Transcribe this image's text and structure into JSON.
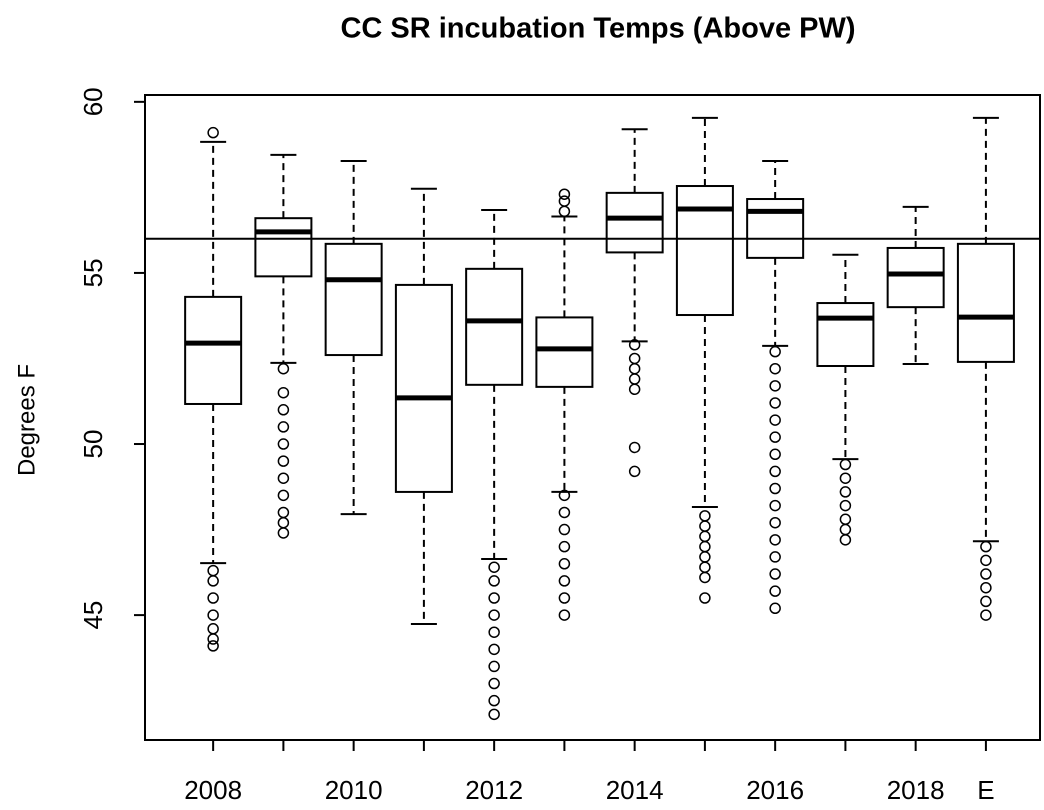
{
  "chart_data": {
    "type": "boxplot",
    "title": "CC SR incubation Temps (Above PW)",
    "y_label": "Degrees F",
    "categories": [
      "2008",
      null,
      "2010",
      null,
      "2012",
      null,
      "2014",
      null,
      "2016",
      null,
      "2018",
      "E"
    ],
    "boxes": [
      {
        "low": 46.52,
        "q1": 51.17,
        "median": 52.95,
        "q3": 54.3,
        "high": 58.83,
        "outliers": [
          59.1,
          46.3,
          46.0,
          45.5,
          45.0,
          44.6,
          44.3,
          44.1
        ]
      },
      {
        "low": 52.37,
        "q1": 54.9,
        "median": 56.2,
        "q3": 56.6,
        "high": 58.45,
        "outliers": [
          52.2,
          51.5,
          51.0,
          50.5,
          50.0,
          49.5,
          49.0,
          48.5,
          48.0,
          47.7,
          47.4
        ]
      },
      {
        "low": 47.95,
        "q1": 52.6,
        "median": 54.8,
        "q3": 55.85,
        "high": 58.27,
        "outliers": []
      },
      {
        "low": 44.74,
        "q1": 48.6,
        "median": 51.35,
        "q3": 54.65,
        "high": 57.46,
        "outliers": []
      },
      {
        "low": 46.64,
        "q1": 51.73,
        "median": 53.6,
        "q3": 55.12,
        "high": 56.84,
        "outliers": [
          46.4,
          46.0,
          45.5,
          45.0,
          44.5,
          44.0,
          43.5,
          43.0,
          42.5,
          42.1
        ]
      },
      {
        "low": 48.6,
        "q1": 51.67,
        "median": 52.78,
        "q3": 53.7,
        "high": 56.65,
        "outliers": [
          57.3,
          57.1,
          56.8,
          48.5,
          48.0,
          47.5,
          47.0,
          46.5,
          46.0,
          45.5,
          45.0
        ]
      },
      {
        "low": 53.0,
        "q1": 55.6,
        "median": 56.6,
        "q3": 57.34,
        "high": 59.2,
        "outliers": [
          52.9,
          52.5,
          52.2,
          51.9,
          51.6,
          49.9,
          49.2
        ]
      },
      {
        "low": 48.16,
        "q1": 53.77,
        "median": 56.87,
        "q3": 57.54,
        "high": 59.53,
        "outliers": [
          47.9,
          47.6,
          47.3,
          47.0,
          46.7,
          46.4,
          46.1,
          45.5
        ]
      },
      {
        "low": 52.87,
        "q1": 55.44,
        "median": 56.8,
        "q3": 57.16,
        "high": 58.27,
        "outliers": [
          52.7,
          52.2,
          51.7,
          51.2,
          50.7,
          50.2,
          49.7,
          49.2,
          48.7,
          48.2,
          47.7,
          47.2,
          46.7,
          46.2,
          45.7,
          45.2
        ]
      },
      {
        "low": 49.56,
        "q1": 52.28,
        "median": 53.68,
        "q3": 54.12,
        "high": 55.53,
        "outliers": [
          49.4,
          49.0,
          48.6,
          48.2,
          47.8,
          47.5,
          47.2
        ]
      },
      {
        "low": 52.34,
        "q1": 54.0,
        "median": 54.97,
        "q3": 55.73,
        "high": 56.93,
        "outliers": []
      },
      {
        "low": 47.16,
        "q1": 52.4,
        "median": 53.71,
        "q3": 55.85,
        "high": 59.53,
        "outliers": [
          47.0,
          46.6,
          46.2,
          45.8,
          45.4,
          45.0
        ]
      }
    ],
    "hline": 56,
    "ylim": [
      41.35,
      60.2
    ],
    "yticks": [
      45,
      50,
      55,
      60
    ],
    "color": "#000000"
  }
}
